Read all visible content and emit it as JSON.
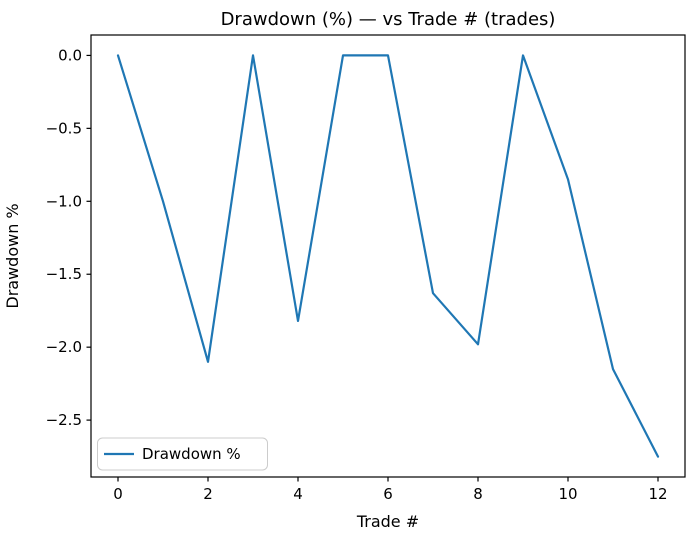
{
  "figure": {
    "title": "Drawdown (%) — vs Trade # (trades)",
    "xlabel": "Trade #",
    "ylabel": "Drawdown %",
    "legend": {
      "label": "Drawdown %",
      "position": "lower left"
    },
    "colors": {
      "line": "#1f77b4",
      "spine": "#000000",
      "text": "#000000",
      "legend_border": "#cccccc",
      "background": "#ffffff"
    }
  },
  "chart_data": {
    "type": "line",
    "title": "Drawdown (%) — vs Trade # (trades)",
    "xlabel": "Trade #",
    "ylabel": "Drawdown %",
    "grid": false,
    "legend_position": "lower left",
    "xlim": [
      -0.6,
      12.6
    ],
    "ylim": [
      -2.89,
      0.14
    ],
    "x_ticks": [
      0,
      2,
      4,
      6,
      8,
      10,
      12
    ],
    "y_ticks": [
      0.0,
      -0.5,
      -1.0,
      -1.5,
      -2.0,
      -2.5
    ],
    "series": [
      {
        "name": "Drawdown %",
        "color": "#1f77b4",
        "x": [
          0,
          1,
          2,
          3,
          4,
          5,
          6,
          7,
          8,
          9,
          10,
          11,
          12
        ],
        "values": [
          0.0,
          -1.0,
          -2.1,
          0.0,
          -1.82,
          0.0,
          0.0,
          -1.63,
          -1.98,
          0.0,
          -0.85,
          -2.15,
          -2.75
        ]
      }
    ]
  }
}
